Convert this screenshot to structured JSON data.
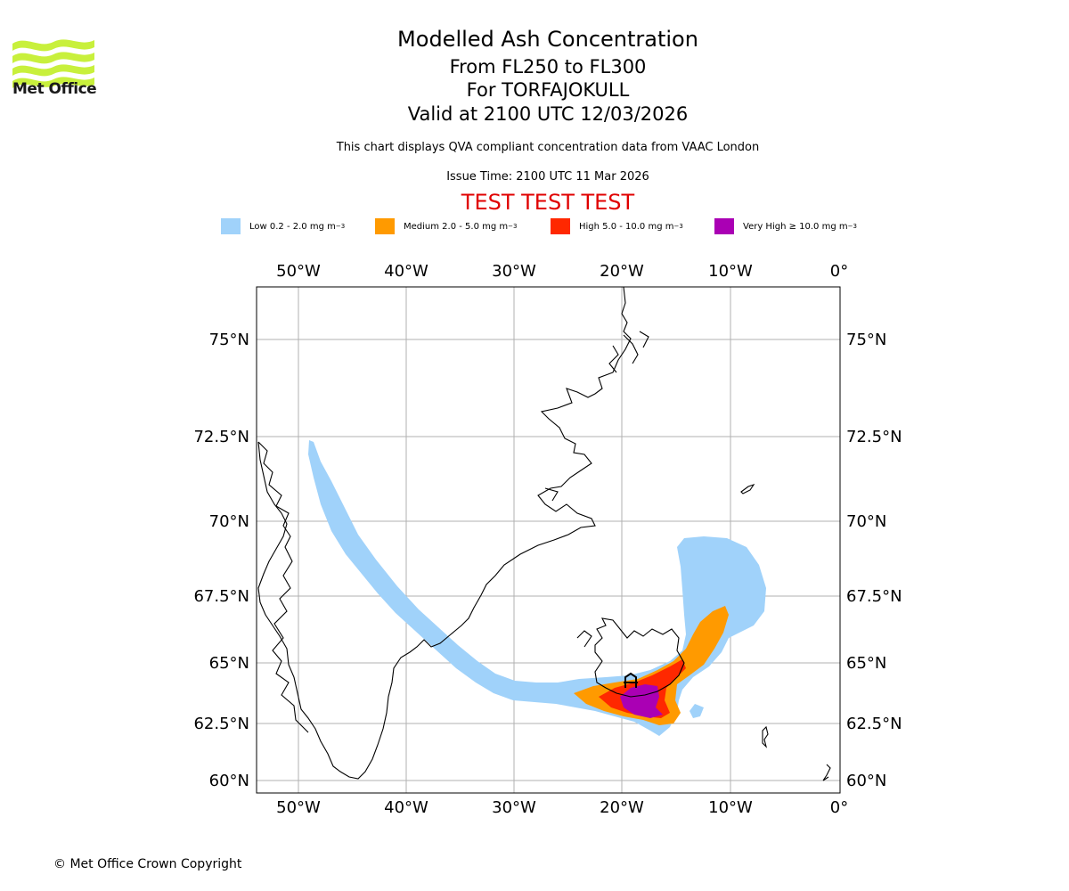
{
  "header": {
    "title": "Modelled Ash Concentration",
    "levels": "From FL250 to FL300",
    "volcano": "For TORFAJOKULL",
    "valid": "Valid at 2100 UTC 12/03/2026",
    "description": "This chart displays QVA compliant concentration data from VAAC London",
    "issue_time": "Issue Time: 2100 UTC 11 Mar 2026",
    "test_banner": "TEST TEST TEST"
  },
  "logo": {
    "text": "Met Office",
    "color": "#c8f03c"
  },
  "legend": [
    {
      "label": "Low 0.2 - 2.0 mg m",
      "color": "#a0d2fa"
    },
    {
      "label": "Medium 2.0 - 5.0 mg m",
      "color": "#ff9a00"
    },
    {
      "label": "High 5.0 - 10.0 mg m",
      "color": "#ff2800"
    },
    {
      "label": "Very High ≥ 10.0 mg m",
      "color": "#aa00b4"
    }
  ],
  "legend_unit_sup": "−3",
  "map": {
    "lon_ticks": [
      "50°W",
      "40°W",
      "30°W",
      "20°W",
      "10°W",
      "0°"
    ],
    "lat_ticks": [
      "75°N",
      "72.5°N",
      "70°N",
      "67.5°N",
      "65°N",
      "62.5°N",
      "60°N"
    ]
  },
  "footer": {
    "copyright": "© Met Office Crown Copyright"
  },
  "colors": {
    "test_banner": "#e00000",
    "grid": "#b0b0b0"
  }
}
